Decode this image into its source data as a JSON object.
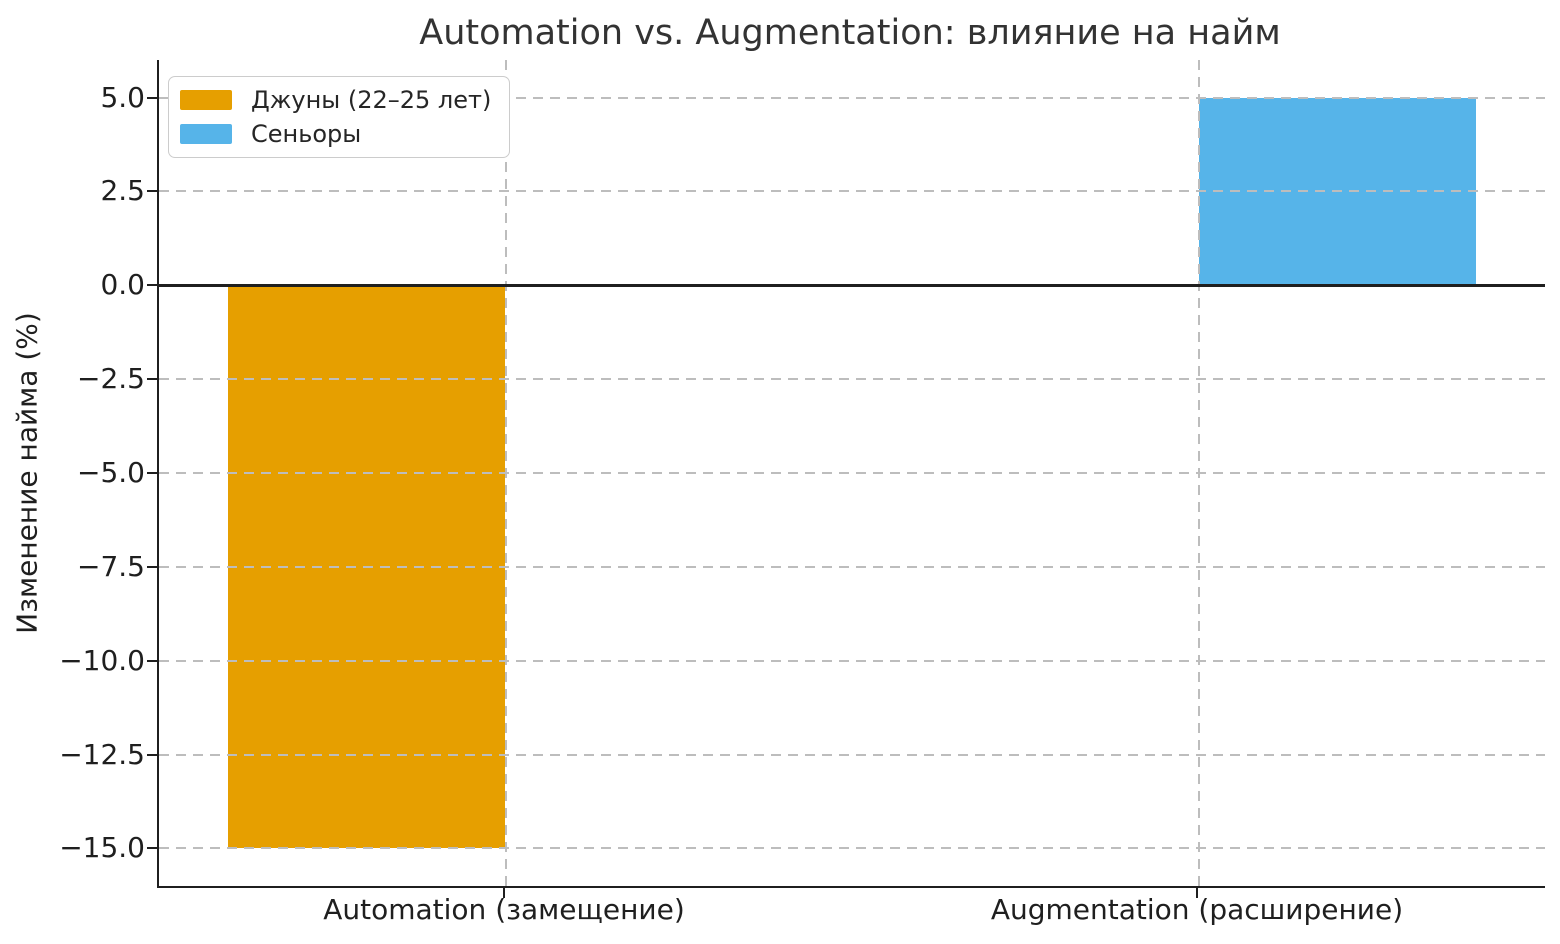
{
  "chart_data": {
    "type": "bar",
    "title": "Automation vs. Augmentation: влияние на найм",
    "xlabel": "",
    "ylabel": "Изменение найма (%)",
    "categories": [
      "Automation (замещение)",
      "Augmentation (расширение)"
    ],
    "series": [
      {
        "name": "Джуны (22–25 лет)",
        "color": "#E69F00",
        "values": [
          -15,
          0
        ]
      },
      {
        "name": "Сеньоры",
        "color": "#56B4E9",
        "values": [
          0,
          5
        ]
      }
    ],
    "ylim": [
      -16,
      6
    ],
    "yticks": {
      "values": [
        5,
        2.5,
        0,
        -2.5,
        -5,
        -7.5,
        -10,
        -12.5,
        -15
      ],
      "labels": [
        "5.0",
        "2.5",
        "0.0",
        "−2.5",
        "−5.0",
        "−7.5",
        "−10.0",
        "−12.5",
        "−15.0"
      ]
    },
    "bar_width": 0.4,
    "zero_line": true,
    "grid": {
      "style": "dashed",
      "color": "#bdbdbd",
      "drawn_above_bars": true
    },
    "legend_position": "upper left",
    "axis_color": "#1f1f1f"
  }
}
